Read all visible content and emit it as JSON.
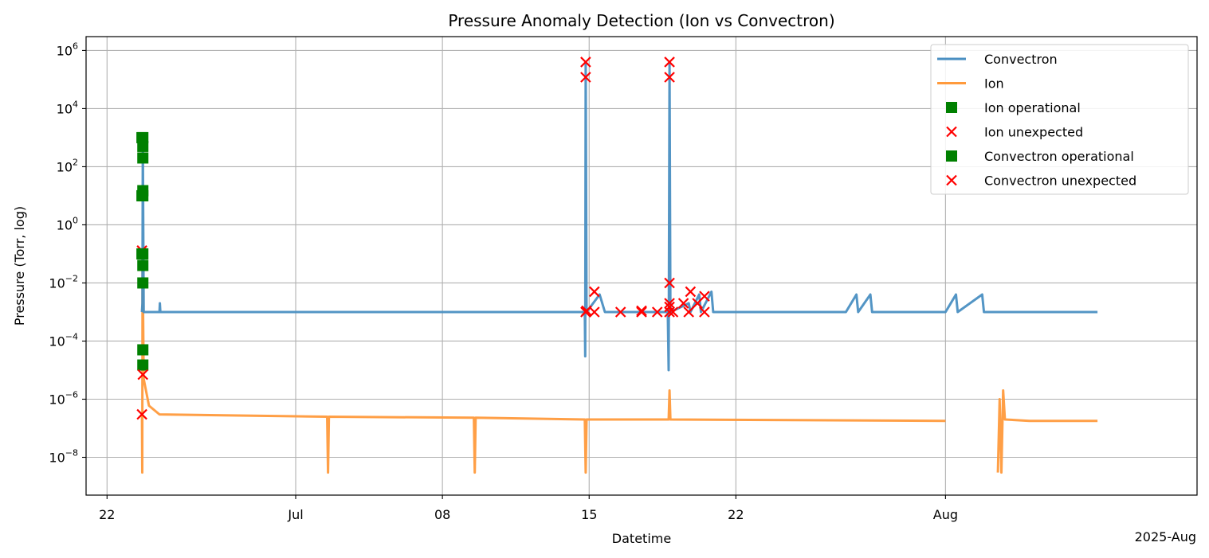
{
  "chart_data": {
    "type": "line",
    "title": "Pressure Anomaly Detection (Ion vs Convectron)",
    "xlabel": "Datetime",
    "ylabel": "Pressure (Torr, log)",
    "x_offset_label": "2025-Aug",
    "x_axis": {
      "type": "date",
      "range": [
        "2025-06-21",
        "2025-08-13"
      ]
    },
    "y_axis": {
      "scale": "log",
      "range": [
        5e-10,
        3000000.0
      ]
    },
    "grid": true,
    "legend_position": "top-right",
    "x_ticks": [
      {
        "date": "2025-06-22",
        "label": "22"
      },
      {
        "date": "2025-07-01",
        "label": "Jul"
      },
      {
        "date": "2025-07-08",
        "label": "08"
      },
      {
        "date": "2025-07-15",
        "label": "15"
      },
      {
        "date": "2025-07-22",
        "label": "22"
      },
      {
        "date": "2025-08-01",
        "label": "Aug"
      }
    ],
    "y_ticks": [
      {
        "value": 1e-08,
        "base": "10",
        "exp": "−8"
      },
      {
        "value": 1e-06,
        "base": "10",
        "exp": "−6"
      },
      {
        "value": 0.0001,
        "base": "10",
        "exp": "−4"
      },
      {
        "value": 0.01,
        "base": "10",
        "exp": "−2"
      },
      {
        "value": 1,
        "base": "10",
        "exp": "0"
      },
      {
        "value": 100,
        "base": "10",
        "exp": "2"
      },
      {
        "value": 10000,
        "base": "10",
        "exp": "4"
      },
      {
        "value": 1000000,
        "base": "10",
        "exp": "6"
      }
    ],
    "colors": {
      "convectron": "#4a8fc2",
      "ion": "#ff9a3c",
      "operational": "#008000",
      "unexpected": "#ff0000",
      "grid": "#b0b0b0"
    },
    "legend": [
      {
        "label": "Convectron",
        "kind": "line",
        "color": "#4a8fc2"
      },
      {
        "label": "Ion",
        "kind": "line",
        "color": "#ff9a3c"
      },
      {
        "label": "Ion operational",
        "kind": "square",
        "color": "#008000"
      },
      {
        "label": "Ion unexpected",
        "kind": "x",
        "color": "#ff0000"
      },
      {
        "label": "Convectron operational",
        "kind": "square",
        "color": "#008000"
      },
      {
        "label": "Convectron unexpected",
        "kind": "x",
        "color": "#ff0000"
      }
    ],
    "series": [
      {
        "name": "Convectron",
        "color": "#4a8fc2",
        "points": [
          [
            "2025-06-23T16:00",
            0.001
          ],
          [
            "2025-06-23T16:30",
            0.002
          ],
          [
            "2025-06-23T17:00",
            1000
          ],
          [
            "2025-06-23T18:00",
            0.001
          ],
          [
            "2025-06-24T12:00",
            0.001
          ],
          [
            "2025-06-24T12:30",
            0.002
          ],
          [
            "2025-06-24T13:00",
            0.001
          ],
          [
            "2025-07-03T00:00",
            0.001
          ],
          [
            "2025-07-09T12:00",
            0.001
          ],
          [
            "2025-07-14T19:00",
            0.001
          ],
          [
            "2025-07-14T19:30",
            3e-05
          ],
          [
            "2025-07-14T20:00",
            400000
          ],
          [
            "2025-07-14T21:00",
            0.001
          ],
          [
            "2025-07-15T12:00",
            0.004
          ],
          [
            "2025-07-15T18:00",
            0.001
          ],
          [
            "2025-07-17T12:00",
            0.001
          ],
          [
            "2025-07-18T12:00",
            0.001
          ],
          [
            "2025-07-18T18:00",
            0.001
          ],
          [
            "2025-07-18T19:00",
            1e-05
          ],
          [
            "2025-07-18T20:00",
            400000
          ],
          [
            "2025-07-18T21:00",
            0.001
          ],
          [
            "2025-07-19T18:00",
            0.002
          ],
          [
            "2025-07-19T20:00",
            0.001
          ],
          [
            "2025-07-20T06:00",
            0.004
          ],
          [
            "2025-07-20T08:00",
            0.001
          ],
          [
            "2025-07-20T20:00",
            0.005
          ],
          [
            "2025-07-20T22:00",
            0.001
          ],
          [
            "2025-07-23T00:00",
            0.001
          ],
          [
            "2025-07-27T06:00",
            0.001
          ],
          [
            "2025-07-27T18:00",
            0.004
          ],
          [
            "2025-07-27T20:00",
            0.001
          ],
          [
            "2025-07-28T10:00",
            0.004
          ],
          [
            "2025-07-28T12:00",
            0.001
          ],
          [
            "2025-08-01T00:00",
            0.001
          ],
          [
            "2025-08-01T12:00",
            0.004
          ],
          [
            "2025-08-01T14:00",
            0.001
          ],
          [
            "2025-08-02T18:00",
            0.004
          ],
          [
            "2025-08-02T20:00",
            0.001
          ],
          [
            "2025-08-05T00:00",
            0.001
          ],
          [
            "2025-08-07T12:00",
            0.001
          ],
          [
            "2025-08-08T06:00",
            0.001
          ]
        ]
      },
      {
        "name": "Ion",
        "color": "#ff9a3c",
        "points": [
          [
            "2025-06-23T16:00",
            3e-07
          ],
          [
            "2025-06-23T16:20",
            3e-09
          ],
          [
            "2025-06-23T16:40",
            0.1
          ],
          [
            "2025-06-23T18:00",
            5e-06
          ],
          [
            "2025-06-24T00:00",
            6e-07
          ],
          [
            "2025-06-24T12:00",
            3e-07
          ],
          [
            "2025-07-02T12:00",
            2.5e-07
          ],
          [
            "2025-07-02T13:00",
            3e-09
          ],
          [
            "2025-07-02T14:00",
            2.5e-07
          ],
          [
            "2025-07-09T12:00",
            2.3e-07
          ],
          [
            "2025-07-09T13:00",
            3e-09
          ],
          [
            "2025-07-09T14:00",
            2.3e-07
          ],
          [
            "2025-07-14T19:00",
            2e-07
          ],
          [
            "2025-07-14T20:00",
            3e-09
          ],
          [
            "2025-07-14T21:00",
            2e-07
          ],
          [
            "2025-07-18T19:00",
            2e-07
          ],
          [
            "2025-07-18T20:00",
            2e-06
          ],
          [
            "2025-07-18T21:00",
            2e-07
          ],
          [
            "2025-08-01T00:00",
            1.8e-07
          ],
          null,
          [
            "2025-08-03T12:00",
            3e-09
          ],
          [
            "2025-08-03T14:00",
            1e-06
          ],
          [
            "2025-08-03T16:00",
            3e-09
          ],
          [
            "2025-08-03T18:00",
            2e-06
          ],
          [
            "2025-08-03T20:00",
            2e-07
          ],
          [
            "2025-08-05T00:00",
            1.8e-07
          ],
          [
            "2025-08-07T12:00",
            1.8e-07
          ],
          [
            "2025-08-08T06:00",
            1.8e-07
          ]
        ]
      },
      {
        "name": "Ion operational",
        "kind": "square",
        "color": "#008000",
        "points": [
          [
            "2025-06-23T17:00",
            1000
          ],
          [
            "2025-06-23T17:00",
            500
          ],
          [
            "2025-06-23T17:00",
            200
          ],
          [
            "2025-06-23T17:00",
            15
          ],
          [
            "2025-06-23T17:00",
            10
          ],
          [
            "2025-06-23T17:00",
            0.1
          ],
          [
            "2025-06-23T17:00",
            0.04
          ],
          [
            "2025-06-23T17:00",
            0.01
          ],
          [
            "2025-06-23T17:00",
            5e-05
          ],
          [
            "2025-06-23T17:00",
            1.5e-05
          ]
        ]
      },
      {
        "name": "Ion unexpected",
        "kind": "x",
        "color": "#ff0000",
        "points": [
          [
            "2025-06-23T16:00",
            3e-07
          ],
          [
            "2025-06-23T17:00",
            7e-06
          ],
          [
            "2025-06-23T16:00",
            0.13
          ]
        ]
      },
      {
        "name": "Convectron operational",
        "kind": "square",
        "color": "#008000",
        "points": [
          [
            "2025-06-23T16:00",
            1000
          ],
          [
            "2025-06-23T16:00",
            10
          ],
          [
            "2025-06-23T16:00",
            0.1
          ]
        ]
      },
      {
        "name": "Convectron unexpected",
        "kind": "x",
        "color": "#ff0000",
        "points": [
          [
            "2025-07-14T20:00",
            400000
          ],
          [
            "2025-07-14T20:00",
            120000
          ],
          [
            "2025-07-14T20:00",
            0.001
          ],
          [
            "2025-07-14T21:00",
            0.0011
          ],
          [
            "2025-07-15T06:00",
            0.005
          ],
          [
            "2025-07-15T06:00",
            0.001
          ],
          [
            "2025-07-16T12:00",
            0.001
          ],
          [
            "2025-07-17T12:00",
            0.0011
          ],
          [
            "2025-07-17T12:00",
            0.001
          ],
          [
            "2025-07-18T06:00",
            0.001
          ],
          [
            "2025-07-18T20:00",
            400000
          ],
          [
            "2025-07-18T20:00",
            120000
          ],
          [
            "2025-07-18T20:00",
            0.01
          ],
          [
            "2025-07-18T20:00",
            0.002
          ],
          [
            "2025-07-18T20:00",
            0.0015
          ],
          [
            "2025-07-18T20:00",
            0.001
          ],
          [
            "2025-07-19T00:00",
            0.001
          ],
          [
            "2025-07-19T12:00",
            0.002
          ],
          [
            "2025-07-19T18:00",
            0.001
          ],
          [
            "2025-07-19T20:00",
            0.005
          ],
          [
            "2025-07-20T04:00",
            0.002
          ],
          [
            "2025-07-20T12:00",
            0.0035
          ],
          [
            "2025-07-20T12:00",
            0.001
          ]
        ]
      }
    ]
  }
}
